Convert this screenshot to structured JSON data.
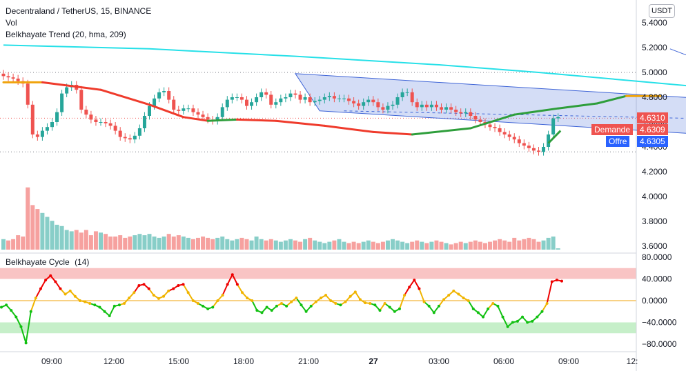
{
  "header": {
    "symbol_title": "Decentraland / TetherUS, 15, BINANCE",
    "vol_label": "Vol",
    "trend_label": "Belkhayate Trend (20, hma, 209)",
    "currency_button": "USDT"
  },
  "oscillator": {
    "label": "Belkhayate Cycle",
    "param": "(14)",
    "axis_ticks": [
      "80.0000",
      "40.0000",
      "0.0000",
      "−40.0000",
      "−80.0000"
    ]
  },
  "price_tags": {
    "last": "4.6310",
    "bid_label": "Demande",
    "bid_value": "4.6309",
    "ask_label": "Offre",
    "ask_value": "4.6305"
  },
  "colors": {
    "up": "#26a69a",
    "down": "#ef5350",
    "hma": "#26e0e8",
    "channel": "#3d63d6",
    "zero_line": "#f0a30a",
    "upper_zone": "#f9c4c4",
    "lower_zone": "#c6efc9"
  },
  "chart_data": [
    {
      "type": "line",
      "title": "Decentraland / TetherUS, 15, BINANCE",
      "xlabel": "",
      "ylabel": "",
      "x_ticks": [
        "09:00",
        "12:00",
        "15:00",
        "18:00",
        "21:00",
        "27",
        "03:00",
        "06:00",
        "09:00",
        "12:"
      ],
      "y_ticks": [
        "5.4000",
        "5.2000",
        "5.0000",
        "4.8000",
        "4.6000",
        "4.4000",
        "4.2000",
        "4.0000",
        "3.8000",
        "3.6000"
      ],
      "ylim": [
        3.58,
        5.43
      ],
      "price_close": [
        4.97,
        4.96,
        4.95,
        4.93,
        4.91,
        4.74,
        4.5,
        4.48,
        4.53,
        4.56,
        4.6,
        4.68,
        4.83,
        4.88,
        4.9,
        4.86,
        4.7,
        4.66,
        4.62,
        4.6,
        4.6,
        4.59,
        4.57,
        4.53,
        4.48,
        4.47,
        4.46,
        4.49,
        4.55,
        4.65,
        4.73,
        4.79,
        4.84,
        4.85,
        4.78,
        4.7,
        4.69,
        4.71,
        4.71,
        4.68,
        4.66,
        4.64,
        4.62,
        4.61,
        4.64,
        4.72,
        4.78,
        4.8,
        4.8,
        4.78,
        4.73,
        4.76,
        4.8,
        4.84,
        4.82,
        4.74,
        4.76,
        4.79,
        4.8,
        4.83,
        4.82,
        4.78,
        4.8,
        4.76,
        4.77,
        4.78,
        4.8,
        4.81,
        4.79,
        4.79,
        4.79,
        4.77,
        4.75,
        4.73,
        4.76,
        4.78,
        4.76,
        4.72,
        4.7,
        4.73,
        4.74,
        4.8,
        4.84,
        4.84,
        4.76,
        4.72,
        4.74,
        4.72,
        4.74,
        4.72,
        4.7,
        4.72,
        4.7,
        4.68,
        4.67,
        4.68,
        4.65,
        4.62,
        4.6,
        4.58,
        4.56,
        4.55,
        4.52,
        4.5,
        4.48,
        4.46,
        4.43,
        4.41,
        4.39,
        4.37,
        4.36,
        4.4,
        4.5,
        4.63,
        4.64
      ],
      "hma_trend": [
        [
          0,
          5.22
        ],
        [
          30,
          5.19
        ],
        [
          60,
          5.13
        ],
        [
          90,
          5.06
        ],
        [
          110,
          5.0
        ],
        [
          130,
          4.93
        ],
        [
          150,
          4.86
        ],
        [
          166,
          4.83
        ],
        [
          180,
          4.79
        ],
        [
          200,
          4.72
        ],
        [
          220,
          4.7
        ],
        [
          250,
          4.69
        ],
        [
          280,
          4.69
        ],
        [
          320,
          4.68
        ],
        [
          340,
          4.63
        ]
      ],
      "short_trend": [
        [
          0,
          4.92
        ],
        [
          8,
          4.92
        ],
        [
          20,
          4.86
        ],
        [
          30,
          4.74
        ],
        [
          37,
          4.64
        ],
        [
          42,
          4.61
        ],
        [
          48,
          4.62
        ],
        [
          56,
          4.61
        ],
        [
          66,
          4.57
        ],
        [
          76,
          4.52
        ],
        [
          84,
          4.5
        ],
        [
          96,
          4.55
        ],
        [
          105,
          4.66
        ],
        [
          114,
          4.71
        ],
        [
          122,
          4.75
        ],
        [
          128,
          4.81
        ],
        [
          135,
          4.81
        ]
      ],
      "channel_upper": [
        [
          60,
          4.99
        ],
        [
          190,
          4.68
        ]
      ],
      "channel_lower": [
        [
          65,
          4.69
        ],
        [
          203,
          4.36
        ]
      ],
      "trend_line": [
        [
          137,
          5.19
        ],
        [
          190,
          4.4
        ]
      ],
      "dotted_levels": [
        5.0,
        4.36
      ]
    },
    {
      "type": "bar",
      "title": "Vol",
      "volume_relative": [
        0.16,
        0.14,
        0.16,
        0.22,
        0.2,
        0.95,
        0.68,
        0.62,
        0.56,
        0.5,
        0.44,
        0.38,
        0.36,
        0.3,
        0.28,
        0.3,
        0.26,
        0.3,
        0.22,
        0.28,
        0.26,
        0.24,
        0.2,
        0.2,
        0.22,
        0.18,
        0.2,
        0.22,
        0.24,
        0.22,
        0.24,
        0.2,
        0.18,
        0.2,
        0.24,
        0.2,
        0.22,
        0.2,
        0.18,
        0.16,
        0.18,
        0.2,
        0.18,
        0.16,
        0.18,
        0.2,
        0.16,
        0.14,
        0.16,
        0.18,
        0.16,
        0.14,
        0.2,
        0.16,
        0.14,
        0.16,
        0.14,
        0.12,
        0.14,
        0.16,
        0.14,
        0.12,
        0.16,
        0.18,
        0.14,
        0.12,
        0.1,
        0.12,
        0.14,
        0.16,
        0.12,
        0.1,
        0.12,
        0.1,
        0.12,
        0.14,
        0.12,
        0.1,
        0.12,
        0.14,
        0.16,
        0.14,
        0.12,
        0.1,
        0.12,
        0.14,
        0.12,
        0.1,
        0.12,
        0.14,
        0.12,
        0.1,
        0.08,
        0.1,
        0.12,
        0.1,
        0.12,
        0.14,
        0.12,
        0.1,
        0.12,
        0.14,
        0.16,
        0.14,
        0.12,
        0.18,
        0.14,
        0.16,
        0.18,
        0.16,
        0.12,
        0.14,
        0.18,
        0.2,
        0.02
      ]
    },
    {
      "type": "line",
      "title": "Belkhayate Cycle (14)",
      "ylim": [
        -95,
        95
      ],
      "zones": {
        "upper": [
          40,
          60
        ],
        "lower": [
          -60,
          -40
        ]
      },
      "series": [
        {
          "values": [
            -12,
            -8,
            -18,
            -30,
            -48,
            -78,
            -20,
            5,
            22,
            38,
            46,
            35,
            22,
            12,
            18,
            8,
            0,
            -2,
            -5,
            -8,
            -12,
            -20,
            -28,
            -10,
            -8,
            -5,
            5,
            15,
            28,
            30,
            22,
            10,
            4,
            8,
            18,
            22,
            28,
            30,
            15,
            0,
            -5,
            -10,
            -15,
            -12,
            0,
            10,
            30,
            48,
            30,
            15,
            5,
            0,
            -18,
            -22,
            -12,
            -18,
            -10,
            -5,
            -10,
            -2,
            5,
            -8,
            -20,
            -10,
            -2,
            5,
            10,
            0,
            -5,
            -8,
            -2,
            8,
            16,
            2,
            -4,
            -5,
            -8,
            -18,
            -5,
            -12,
            -20,
            -15,
            10,
            25,
            38,
            22,
            -2,
            -10,
            -22,
            -10,
            2,
            10,
            18,
            12,
            5,
            0,
            -15,
            -22,
            -30,
            -15,
            -5,
            -10,
            -30,
            -48,
            -40,
            -38,
            -30,
            -40,
            -38,
            -30,
            -20,
            -5,
            35,
            38,
            36
          ]
        }
      ]
    }
  ]
}
